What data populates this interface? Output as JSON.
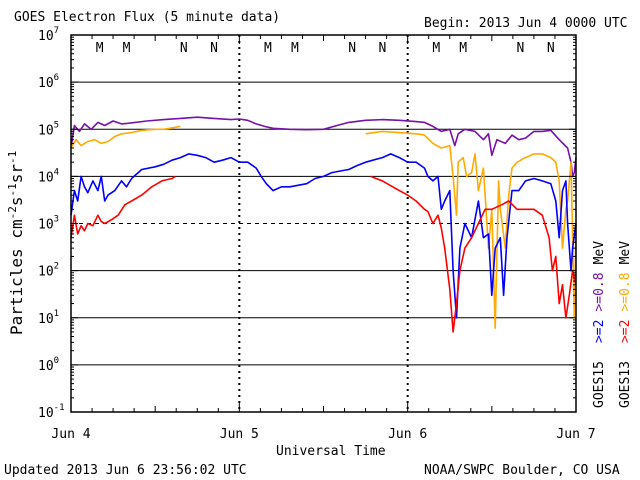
{
  "chart_data": {
    "type": "line",
    "title": "GOES Electron Flux (5 minute data)",
    "begin_label": "Begin: 2013 Jun 4 0000 UTC",
    "xlabel": "Universal Time",
    "ylabel": "Particles cm⁻²s⁻¹sr⁻¹",
    "ylabel_parts": {
      "base": "Particles cm",
      "exp1": "-2",
      "mid": "s",
      "exp2": "-1",
      "mid2": "sr",
      "exp3": "-1"
    },
    "yscale": "log",
    "ylim": [
      0.1,
      10000000
    ],
    "y_ticks": [
      {
        "mant": "10",
        "exp": "-1"
      },
      {
        "mant": "10",
        "exp": "0"
      },
      {
        "mant": "10",
        "exp": "1"
      },
      {
        "mant": "10",
        "exp": "2"
      },
      {
        "mant": "10",
        "exp": "3"
      },
      {
        "mant": "10",
        "exp": "4"
      },
      {
        "mant": "10",
        "exp": "5"
      },
      {
        "mant": "10",
        "exp": "6"
      },
      {
        "mant": "10",
        "exp": "7"
      }
    ],
    "xlim_days": [
      0,
      3
    ],
    "x_ticks": [
      "Jun 4",
      "Jun 5",
      "Jun 6",
      "Jun 7"
    ],
    "alert_threshold": 1000,
    "local_markers": [
      {
        "day": 0.17,
        "label": "M",
        "color": "#dd0000"
      },
      {
        "day": 0.33,
        "label": "M",
        "color": "#0000cc"
      },
      {
        "day": 0.67,
        "label": "N",
        "color": "#dd0000"
      },
      {
        "day": 0.85,
        "label": "N",
        "color": "#0000cc"
      },
      {
        "day": 1.17,
        "label": "M",
        "color": "#dd0000"
      },
      {
        "day": 1.33,
        "label": "M",
        "color": "#0000cc"
      },
      {
        "day": 1.67,
        "label": "N",
        "color": "#dd0000"
      },
      {
        "day": 1.85,
        "label": "N",
        "color": "#0000cc"
      },
      {
        "day": 2.17,
        "label": "M",
        "color": "#dd0000"
      },
      {
        "day": 2.33,
        "label": "M",
        "color": "#0000cc"
      },
      {
        "day": 2.67,
        "label": "N",
        "color": "#dd0000"
      },
      {
        "day": 2.85,
        "label": "N",
        "color": "#0000cc"
      }
    ],
    "series": [
      {
        "name": "GOES15 >=0.8 MeV",
        "color": "#7711aa",
        "points": [
          [
            0.0,
            40000
          ],
          [
            0.02,
            120000
          ],
          [
            0.05,
            90000
          ],
          [
            0.08,
            130000
          ],
          [
            0.12,
            100000
          ],
          [
            0.16,
            140000
          ],
          [
            0.2,
            120000
          ],
          [
            0.25,
            150000
          ],
          [
            0.3,
            130000
          ],
          [
            0.35,
            135000
          ],
          [
            0.45,
            150000
          ],
          [
            0.55,
            160000
          ],
          [
            0.65,
            170000
          ],
          [
            0.75,
            180000
          ],
          [
            0.85,
            170000
          ],
          [
            0.95,
            160000
          ],
          [
            1.0,
            165000
          ],
          [
            1.05,
            155000
          ],
          [
            1.1,
            130000
          ],
          [
            1.15,
            115000
          ],
          [
            1.2,
            105000
          ],
          [
            1.3,
            100000
          ],
          [
            1.4,
            98000
          ],
          [
            1.5,
            100000
          ],
          [
            1.58,
            120000
          ],
          [
            1.65,
            140000
          ],
          [
            1.75,
            155000
          ],
          [
            1.85,
            160000
          ],
          [
            1.95,
            155000
          ],
          [
            2.05,
            145000
          ],
          [
            2.1,
            140000
          ],
          [
            2.15,
            115000
          ],
          [
            2.2,
            90000
          ],
          [
            2.25,
            100000
          ],
          [
            2.28,
            45000
          ],
          [
            2.3,
            80000
          ],
          [
            2.34,
            100000
          ],
          [
            2.4,
            90000
          ],
          [
            2.45,
            60000
          ],
          [
            2.48,
            80000
          ],
          [
            2.5,
            28000
          ],
          [
            2.53,
            60000
          ],
          [
            2.58,
            50000
          ],
          [
            2.62,
            75000
          ],
          [
            2.66,
            60000
          ],
          [
            2.7,
            65000
          ],
          [
            2.75,
            90000
          ],
          [
            2.8,
            90000
          ],
          [
            2.85,
            95000
          ],
          [
            2.9,
            60000
          ],
          [
            2.95,
            40000
          ],
          [
            2.97,
            20000
          ],
          [
            2.98,
            10000
          ],
          [
            2.99,
            12000
          ],
          [
            3.0,
            25000
          ]
        ]
      },
      {
        "name": "GOES13 >=0.8 MeV",
        "color": "#ffaa00",
        "points": [
          [
            0.0,
            40000
          ],
          [
            0.03,
            60000
          ],
          [
            0.06,
            45000
          ],
          [
            0.1,
            55000
          ],
          [
            0.14,
            60000
          ],
          [
            0.18,
            50000
          ],
          [
            0.22,
            55000
          ],
          [
            0.26,
            70000
          ],
          [
            0.3,
            80000
          ],
          [
            0.36,
            85000
          ],
          [
            0.42,
            95000
          ],
          [
            0.5,
            100000
          ],
          [
            0.55,
            100000
          ],
          [
            0.62,
            110000
          ],
          [
            0.65,
            115000
          ],
          [
            0.66,
            null
          ],
          [
            1.74,
            null
          ],
          [
            1.75,
            80000
          ],
          [
            1.85,
            90000
          ],
          [
            1.95,
            85000
          ],
          [
            2.05,
            80000
          ],
          [
            2.1,
            75000
          ],
          [
            2.15,
            50000
          ],
          [
            2.2,
            40000
          ],
          [
            2.25,
            45000
          ],
          [
            2.27,
            10000
          ],
          [
            2.29,
            1500
          ],
          [
            2.3,
            20000
          ],
          [
            2.33,
            25000
          ],
          [
            2.35,
            10000
          ],
          [
            2.38,
            12000
          ],
          [
            2.4,
            30000
          ],
          [
            2.42,
            5000
          ],
          [
            2.45,
            15000
          ],
          [
            2.48,
            300
          ],
          [
            2.5,
            2000
          ],
          [
            2.52,
            6
          ],
          [
            2.54,
            8000
          ],
          [
            2.55,
            2000
          ],
          [
            2.58,
            300
          ],
          [
            2.6,
            4000
          ],
          [
            2.62,
            15000
          ],
          [
            2.65,
            20000
          ],
          [
            2.7,
            25000
          ],
          [
            2.75,
            30000
          ],
          [
            2.8,
            30000
          ],
          [
            2.85,
            25000
          ],
          [
            2.88,
            20000
          ],
          [
            2.9,
            8000
          ],
          [
            2.92,
            300
          ],
          [
            2.94,
            2000
          ],
          [
            2.95,
            3000
          ],
          [
            2.97,
            20000
          ],
          [
            2.98,
            500
          ],
          [
            2.99,
            10
          ],
          [
            3.0,
            1000
          ]
        ]
      },
      {
        "name": "GOES15 >=2 MeV",
        "color": "#0000ff",
        "points": [
          [
            0.0,
            1500
          ],
          [
            0.02,
            5000
          ],
          [
            0.04,
            3000
          ],
          [
            0.06,
            10000
          ],
          [
            0.08,
            6000
          ],
          [
            0.1,
            4500
          ],
          [
            0.13,
            8000
          ],
          [
            0.16,
            5000
          ],
          [
            0.18,
            10000
          ],
          [
            0.2,
            3000
          ],
          [
            0.22,
            4000
          ],
          [
            0.26,
            5000
          ],
          [
            0.3,
            8000
          ],
          [
            0.33,
            6000
          ],
          [
            0.36,
            9000
          ],
          [
            0.42,
            14000
          ],
          [
            0.5,
            16000
          ],
          [
            0.55,
            18000
          ],
          [
            0.6,
            22000
          ],
          [
            0.65,
            25000
          ],
          [
            0.7,
            30000
          ],
          [
            0.75,
            28000
          ],
          [
            0.8,
            25000
          ],
          [
            0.85,
            20000
          ],
          [
            0.9,
            22000
          ],
          [
            0.95,
            25000
          ],
          [
            1.0,
            20000
          ],
          [
            1.05,
            20000
          ],
          [
            1.1,
            15000
          ],
          [
            1.13,
            10000
          ],
          [
            1.16,
            7000
          ],
          [
            1.2,
            5000
          ],
          [
            1.25,
            6000
          ],
          [
            1.3,
            6000
          ],
          [
            1.4,
            7000
          ],
          [
            1.45,
            9000
          ],
          [
            1.5,
            10000
          ],
          [
            1.55,
            12000
          ],
          [
            1.6,
            13000
          ],
          [
            1.65,
            14000
          ],
          [
            1.7,
            17000
          ],
          [
            1.75,
            20000
          ],
          [
            1.85,
            25000
          ],
          [
            1.9,
            30000
          ],
          [
            1.95,
            25000
          ],
          [
            2.0,
            20000
          ],
          [
            2.05,
            20000
          ],
          [
            2.1,
            15000
          ],
          [
            2.12,
            10000
          ],
          [
            2.15,
            8000
          ],
          [
            2.18,
            10000
          ],
          [
            2.2,
            2000
          ],
          [
            2.22,
            3000
          ],
          [
            2.25,
            5000
          ],
          [
            2.27,
            100
          ],
          [
            2.29,
            10
          ],
          [
            2.31,
            300
          ],
          [
            2.34,
            1000
          ],
          [
            2.38,
            500
          ],
          [
            2.42,
            3000
          ],
          [
            2.45,
            500
          ],
          [
            2.48,
            600
          ],
          [
            2.5,
            30
          ],
          [
            2.52,
            300
          ],
          [
            2.55,
            500
          ],
          [
            2.57,
            30
          ],
          [
            2.59,
            500
          ],
          [
            2.62,
            5000
          ],
          [
            2.66,
            5000
          ],
          [
            2.7,
            8000
          ],
          [
            2.75,
            9000
          ],
          [
            2.8,
            8000
          ],
          [
            2.85,
            7000
          ],
          [
            2.88,
            3000
          ],
          [
            2.9,
            500
          ],
          [
            2.92,
            5000
          ],
          [
            2.94,
            8000
          ],
          [
            2.95,
            1000
          ],
          [
            2.97,
            100
          ],
          [
            2.98,
            300
          ],
          [
            3.0,
            1000
          ]
        ]
      },
      {
        "name": "GOES13 >=2 MeV",
        "color": "#ff0000",
        "points": [
          [
            0.0,
            500
          ],
          [
            0.02,
            1500
          ],
          [
            0.04,
            600
          ],
          [
            0.06,
            900
          ],
          [
            0.08,
            700
          ],
          [
            0.1,
            1000
          ],
          [
            0.13,
            900
          ],
          [
            0.16,
            1500
          ],
          [
            0.18,
            1100
          ],
          [
            0.2,
            1000
          ],
          [
            0.24,
            1200
          ],
          [
            0.28,
            1500
          ],
          [
            0.32,
            2500
          ],
          [
            0.36,
            3000
          ],
          [
            0.42,
            4000
          ],
          [
            0.48,
            6000
          ],
          [
            0.54,
            8000
          ],
          [
            0.6,
            9000
          ],
          [
            0.62,
            10000
          ],
          [
            0.63,
            null
          ],
          [
            1.77,
            null
          ],
          [
            1.78,
            10000
          ],
          [
            1.85,
            8000
          ],
          [
            1.95,
            5000
          ],
          [
            2.0,
            4000
          ],
          [
            2.05,
            3000
          ],
          [
            2.1,
            2000
          ],
          [
            2.12,
            1800
          ],
          [
            2.15,
            1000
          ],
          [
            2.18,
            1500
          ],
          [
            2.2,
            800
          ],
          [
            2.22,
            300
          ],
          [
            2.25,
            40
          ],
          [
            2.27,
            5
          ],
          [
            2.29,
            20
          ],
          [
            2.31,
            100
          ],
          [
            2.34,
            300
          ],
          [
            2.38,
            500
          ],
          [
            2.42,
            1000
          ],
          [
            2.46,
            2000
          ],
          [
            2.5,
            2000
          ],
          [
            2.56,
            2500
          ],
          [
            2.6,
            3000
          ],
          [
            2.65,
            2000
          ],
          [
            2.7,
            2000
          ],
          [
            2.75,
            2000
          ],
          [
            2.8,
            1500
          ],
          [
            2.84,
            500
          ],
          [
            2.86,
            100
          ],
          [
            2.88,
            200
          ],
          [
            2.9,
            20
          ],
          [
            2.92,
            50
          ],
          [
            2.94,
            10
          ],
          [
            2.96,
            30
          ],
          [
            2.98,
            100
          ],
          [
            3.0,
            50
          ]
        ]
      }
    ],
    "right_legend": {
      "goes15": "GOES15",
      "goes13": "GOES13",
      "ge2": ">=2",
      "ge08": ">=0.8",
      "mev": "MeV",
      "color_goes15_ge2": "#0000ff",
      "color_goes15_ge08": "#7711aa",
      "color_goes13_ge2": "#ff0000",
      "color_goes13_ge08": "#ffaa00"
    }
  },
  "footer": {
    "updated": "Updated 2013 Jun  6 23:56:02 UTC",
    "credit": "NOAA/SWPC Boulder, CO USA"
  }
}
